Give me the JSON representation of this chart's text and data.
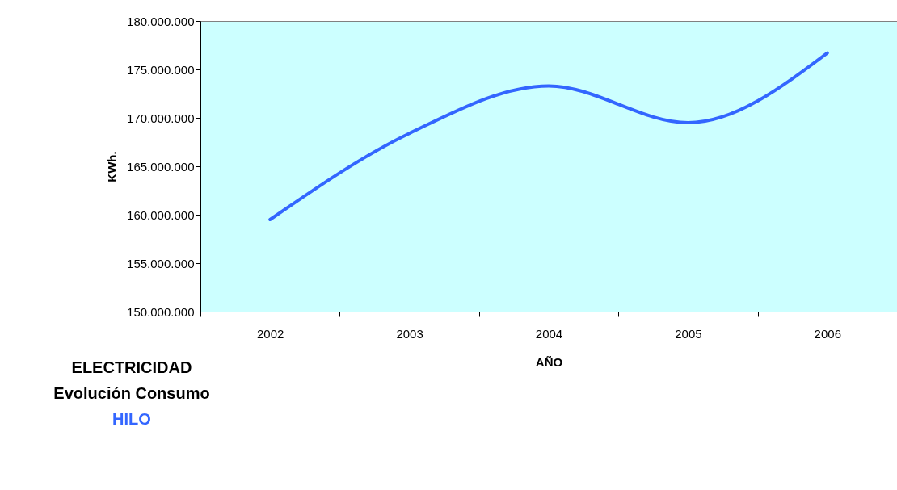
{
  "chart_data": {
    "type": "line",
    "title": "ELECTRICIDAD",
    "subtitle": "Evolución Consumo",
    "xlabel": "AÑO",
    "ylabel": "KWh.",
    "categories": [
      "2002",
      "2003",
      "2004",
      "2005",
      "2006"
    ],
    "series": [
      {
        "name": "HILO",
        "color": "#3366ff",
        "values": [
          159500000,
          168400000,
          173300000,
          169500000,
          176700000
        ]
      }
    ],
    "ylim": [
      150000000,
      180000000
    ],
    "yticks": [
      {
        "value": 150000000,
        "label": "150.000.000"
      },
      {
        "value": 155000000,
        "label": "155.000.000"
      },
      {
        "value": 160000000,
        "label": "160.000.000"
      },
      {
        "value": 165000000,
        "label": "165.000.000"
      },
      {
        "value": 170000000,
        "label": "170.000.000"
      },
      {
        "value": 175000000,
        "label": "175.000.000"
      },
      {
        "value": 180000000,
        "label": "180.000.000"
      }
    ],
    "grid": false,
    "marker": "none",
    "line_style": "solid"
  }
}
